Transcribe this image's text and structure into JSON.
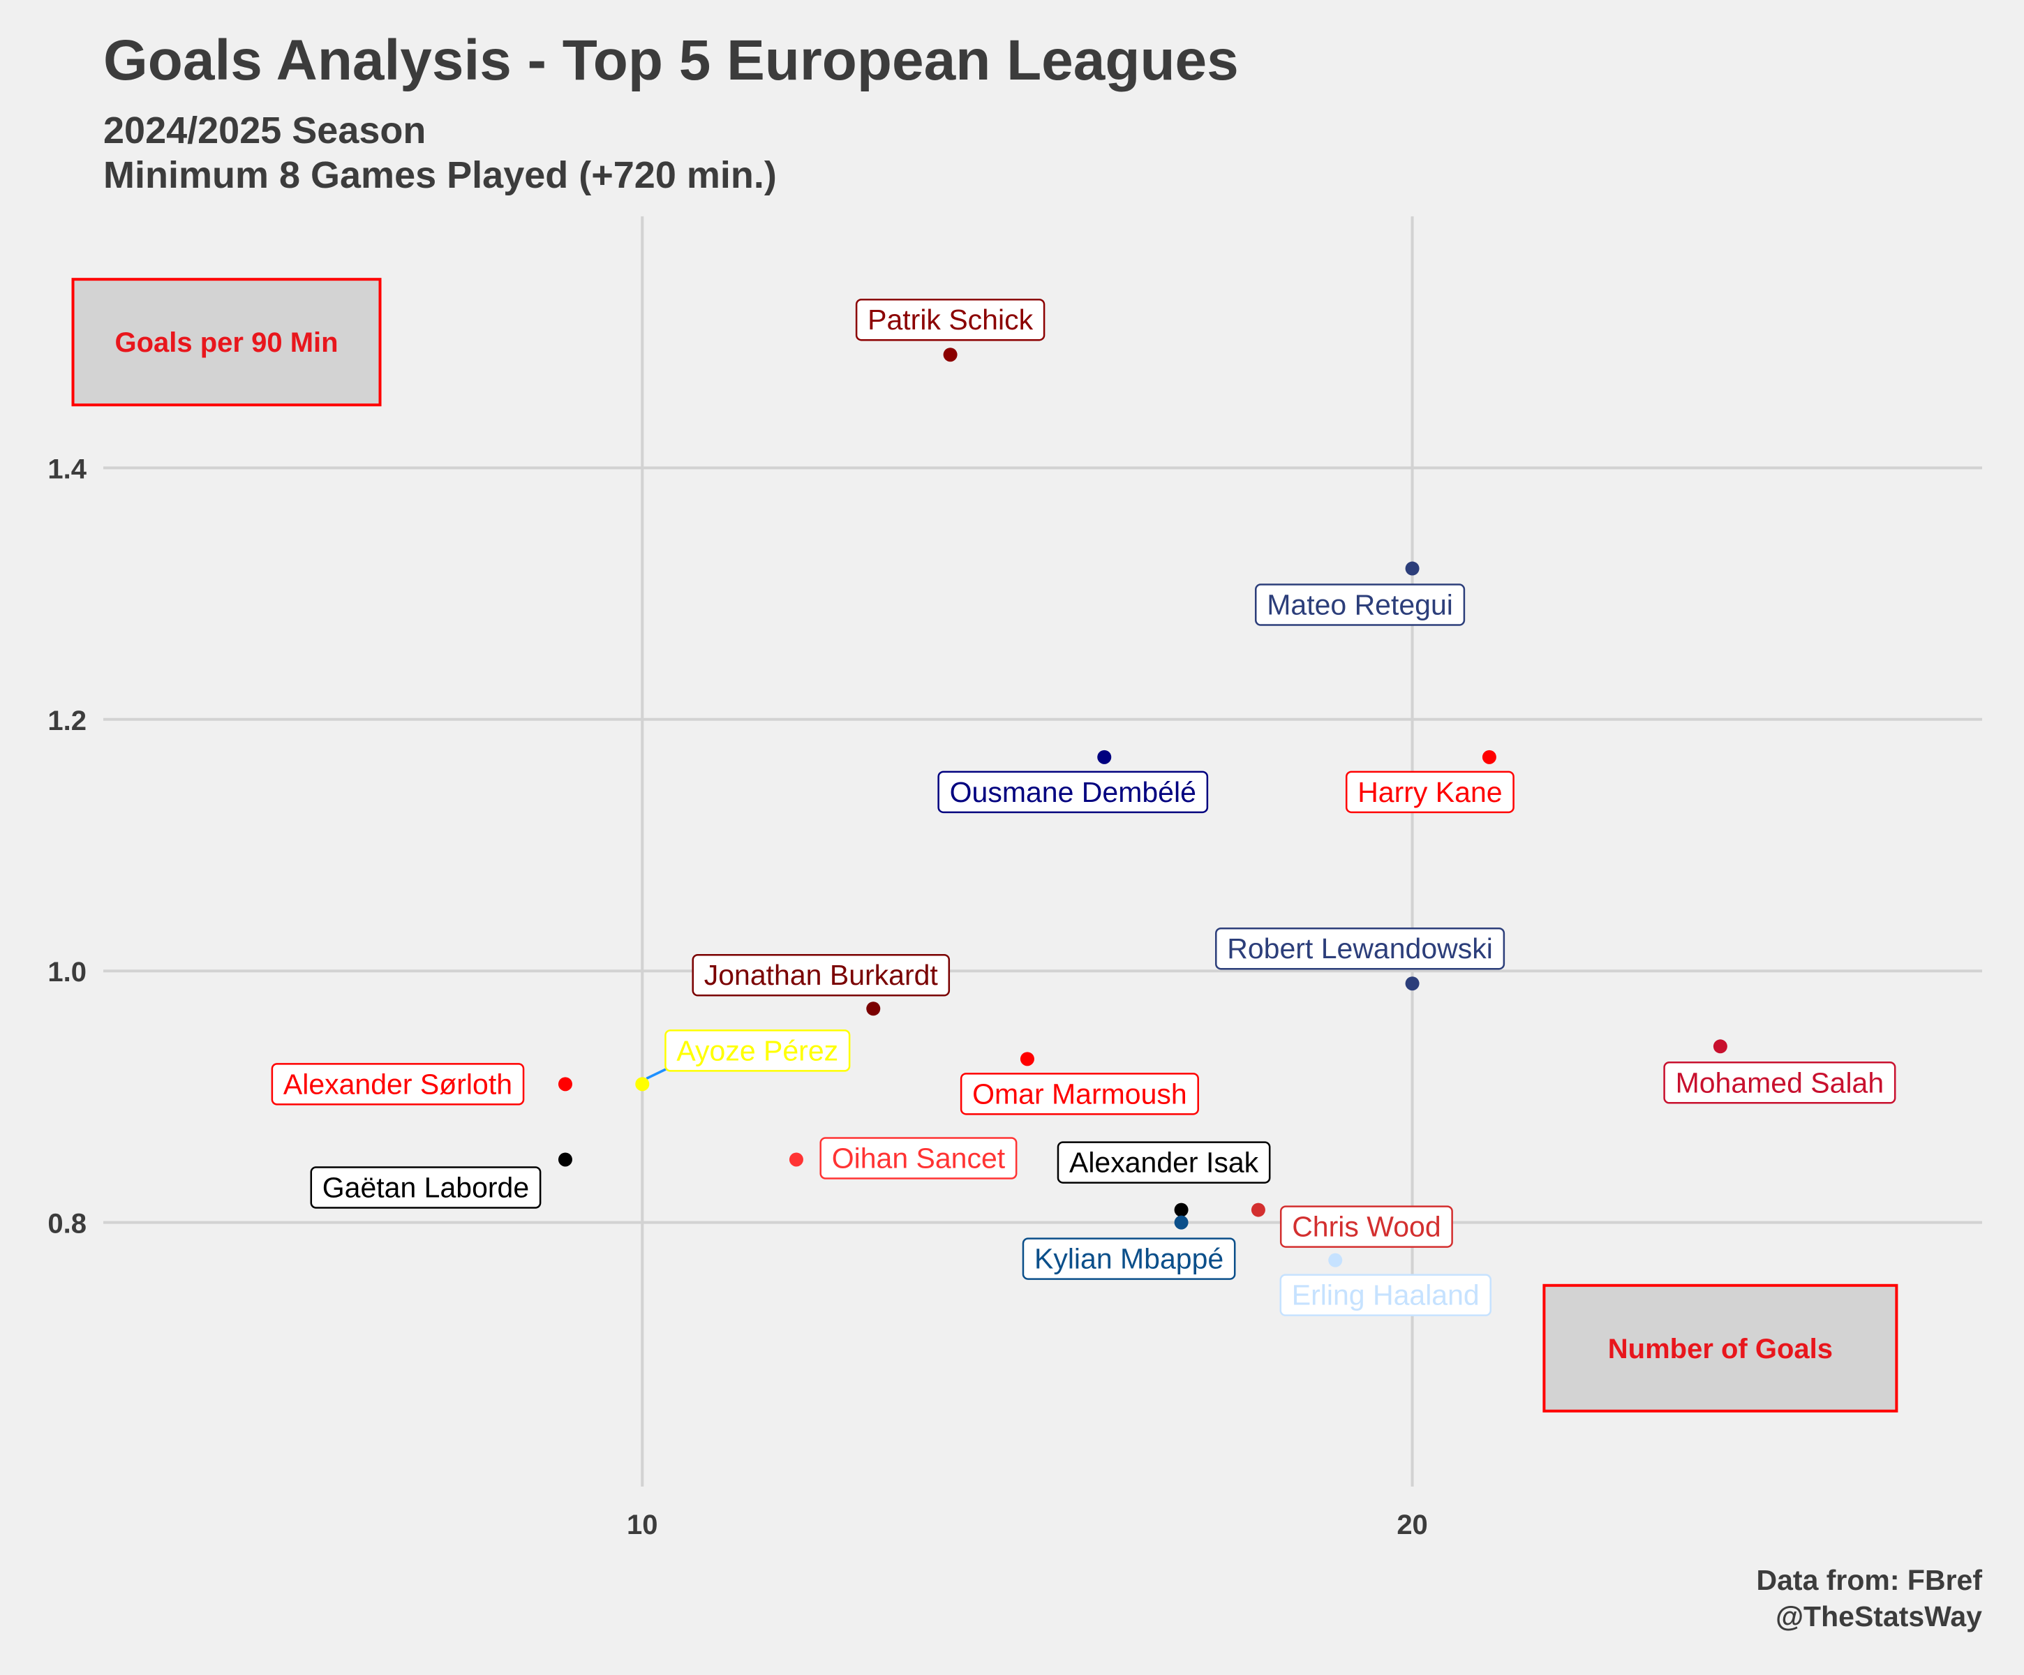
{
  "title": "Goals Analysis - Top 5 European Leagues",
  "subtitles": [
    "2024/2025 Season",
    "Minimum 8 Games Played (+720 min.)"
  ],
  "caption": [
    "Data from: FBref",
    "@TheStatsWay"
  ],
  "chart_data": {
    "type": "scatter",
    "xlabel": "Number of Goals",
    "ylabel": "Goals per 90 Min",
    "xlim": [
      3,
      27.4
    ],
    "ylim": [
      0.59,
      1.6
    ],
    "x_ticks": [
      10,
      20
    ],
    "y_ticks": [
      0.8,
      1.0,
      1.2,
      1.4
    ],
    "grid": true,
    "points": [
      {
        "name": "Patrik Schick",
        "x": 14,
        "y": 1.49,
        "color": "#8b0000",
        "label_dx": 0,
        "label_dy": -50
      },
      {
        "name": "Mateo Retegui",
        "x": 20,
        "y": 1.32,
        "color": "#2c3e7a",
        "label_dx": -75,
        "label_dy": 52
      },
      {
        "name": "Ousmane Dembélé",
        "x": 16,
        "y": 1.17,
        "color": "#00007f",
        "label_dx": -45,
        "label_dy": 50
      },
      {
        "name": "Harry Kane",
        "x": 21,
        "y": 1.17,
        "color": "#ff0000",
        "label_dx": -85,
        "label_dy": 50
      },
      {
        "name": "Robert Lewandowski",
        "x": 20,
        "y": 0.99,
        "color": "#2c3e7a",
        "label_dx": -75,
        "label_dy": -50
      },
      {
        "name": "Mohamed Salah",
        "x": 24,
        "y": 0.94,
        "color": "#c8102e",
        "label_dx": 85,
        "label_dy": 52
      },
      {
        "name": "Jonathan Burkardt",
        "x": 13,
        "y": 0.97,
        "color": "#7a0000",
        "label_dx": -75,
        "label_dy": -48
      },
      {
        "name": "Omar Marmoush",
        "x": 15,
        "y": 0.93,
        "color": "#ff0000",
        "label_dx": 75,
        "label_dy": 50
      },
      {
        "name": "Alexander Sørloth",
        "x": 9,
        "y": 0.91,
        "color": "#ff0000",
        "label_dx": -240,
        "label_dy": 0
      },
      {
        "name": "Ayoze Pérez",
        "x": 10,
        "y": 0.91,
        "color": "#ffff00",
        "label_dx": 165,
        "label_dy": -48
      },
      {
        "name": "Gaëtan Laborde",
        "x": 9,
        "y": 0.85,
        "color": "#000000",
        "label_dx": -200,
        "label_dy": 40
      },
      {
        "name": "Oihan Sancet",
        "x": 12,
        "y": 0.85,
        "color": "#ff3333",
        "label_dx": 175,
        "label_dy": -2
      },
      {
        "name": "Alexander Isak",
        "x": 17,
        "y": 0.81,
        "color": "#000000",
        "label_dx": -25,
        "label_dy": -68
      },
      {
        "name": "Kylian Mbappé",
        "x": 17,
        "y": 0.8,
        "color": "#0b4f8a",
        "label_dx": -75,
        "label_dy": 52
      },
      {
        "name": "Chris Wood",
        "x": 18,
        "y": 0.81,
        "color": "#d32f2f",
        "label_dx": 155,
        "label_dy": 24
      },
      {
        "name": "Erling Haaland",
        "x": 19,
        "y": 0.77,
        "color": "#c6e2ff",
        "label_dx": 72,
        "label_dy": 50
      }
    ]
  }
}
